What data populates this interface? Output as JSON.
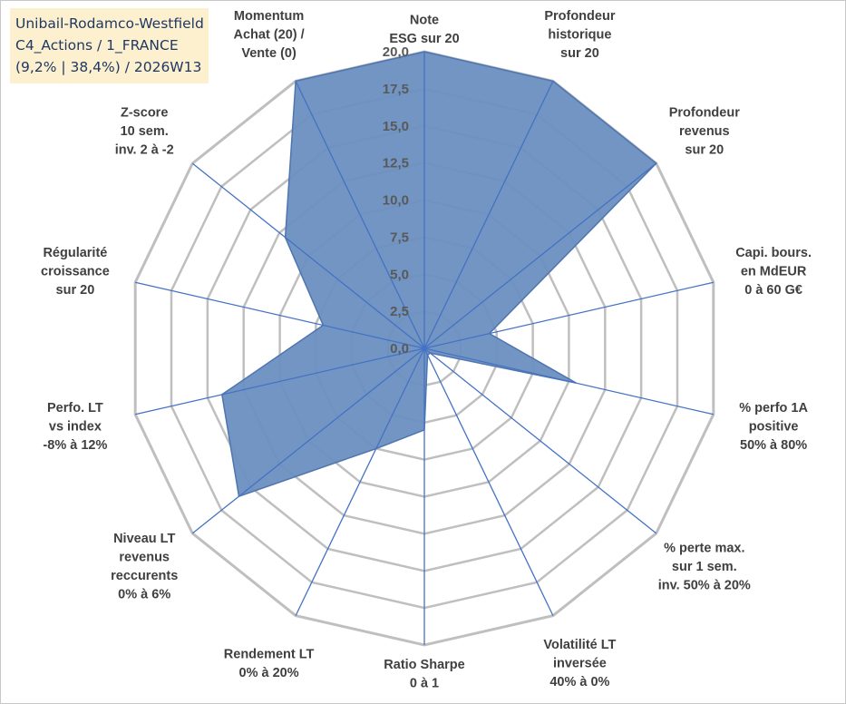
{
  "info": {
    "line1": "Unibail-Rodamco-Westfield",
    "line2": "C4_Actions / 1_FRANCE",
    "line3": "(9,2% | 38,4%) / 2026W13"
  },
  "chart_data": {
    "type": "radar",
    "range": [
      0,
      20
    ],
    "ticks": [
      "0,0",
      "2,5",
      "5,0",
      "7,5",
      "10,0",
      "12,5",
      "15,0",
      "17,5",
      "20,0"
    ],
    "axes": [
      [
        "Note",
        "ESG sur 20"
      ],
      [
        "Profondeur",
        "historique",
        "sur 20"
      ],
      [
        "Profondeur",
        "revenus",
        "sur 20"
      ],
      [
        "Capi. bours.",
        "en MdEUR",
        "0 à 60 G€"
      ],
      [
        "% perfo 1A",
        "positive",
        "50% à 80%"
      ],
      [
        "% perte max.",
        "sur 1 sem.",
        "inv. 50% à 20%"
      ],
      [
        "Volatilité LT",
        "inversée",
        "40% à 0%"
      ],
      [
        "Ratio Sharpe",
        "0 à 1"
      ],
      [
        "Rendement LT",
        "0% à 20%"
      ],
      [
        "Niveau LT",
        "revenus",
        "reccurents",
        "0% à 6%"
      ],
      [
        "Perfo. LT",
        "vs index",
        "-8% à 12%"
      ],
      [
        "Régularité",
        "croissance",
        "sur 20"
      ],
      [
        "Z-score",
        "10 sem.",
        "inv. 2 à -2"
      ],
      [
        "Momentum",
        "Achat (20) /",
        "Vente (0)"
      ]
    ],
    "values": [
      20,
      20,
      20,
      4.5,
      10.5,
      0.5,
      0.5,
      5.5,
      7.5,
      16,
      14,
      7,
      12,
      20
    ],
    "colors": {
      "fill": "#6a8fc0",
      "stroke": "#4f75b0",
      "spoke": "#4472c4",
      "grid": "#bfbfbf"
    },
    "grid": true
  }
}
